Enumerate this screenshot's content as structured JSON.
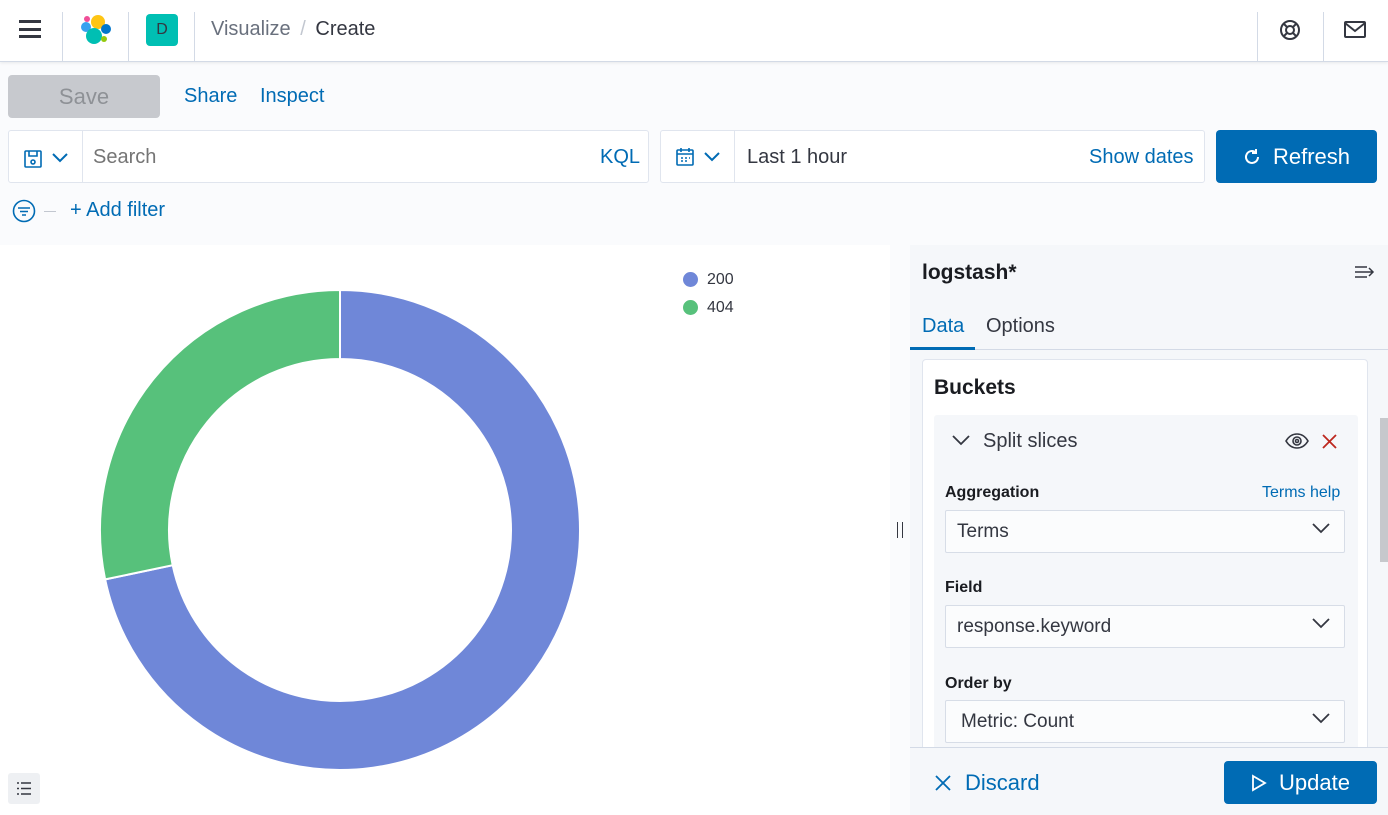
{
  "header": {
    "breadcrumb_parent": "Visualize",
    "breadcrumb_sep": "/",
    "breadcrumb_current": "Create",
    "space_initial": "D",
    "space_color": "#00bfb3"
  },
  "toolbar": {
    "save": "Save",
    "share": "Share",
    "inspect": "Inspect"
  },
  "query": {
    "placeholder": "Search",
    "language": "KQL",
    "time_range": "Last 1 hour",
    "show_dates": "Show dates",
    "refresh": "Refresh"
  },
  "filters": {
    "add_filter": "+ Add filter"
  },
  "chart_data": {
    "type": "pie",
    "donut": true,
    "categories": [
      "200",
      "404"
    ],
    "values": [
      0.717,
      0.283
    ],
    "colors": [
      "#6f87d8",
      "#57c17b"
    ],
    "legend_position": "top-right"
  },
  "panel": {
    "index_pattern": "logstash*",
    "tabs": [
      "Data",
      "Options"
    ],
    "active_tab": "Data",
    "section": "Buckets",
    "bucket_title": "Split slices",
    "aggregation_label": "Aggregation",
    "terms_help": "Terms help",
    "aggregation_value": "Terms",
    "field_label": "Field",
    "field_value": "response.keyword",
    "orderby_label": "Order by",
    "orderby_value": "Metric: Count",
    "discard": "Discard",
    "update": "Update"
  }
}
